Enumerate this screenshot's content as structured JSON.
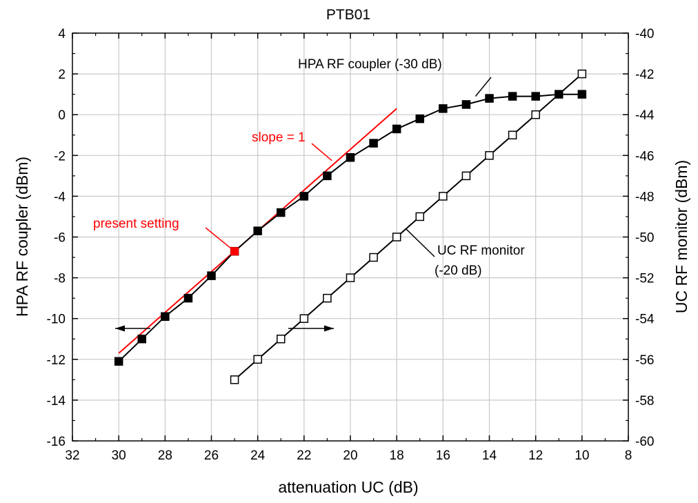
{
  "chart_data": {
    "type": "line",
    "title": "PTB01",
    "xlabel": "attenuation UC (dB)",
    "ylabel_left": "HPA RF coupler (dBm)",
    "ylabel_right": "UC RF monitor (dBm)",
    "x_reversed": true,
    "xlim": [
      32,
      8
    ],
    "ylim_left": [
      -16,
      4
    ],
    "ylim_right": [
      -60,
      -40
    ],
    "grid": true,
    "x_ticks": [
      "32",
      "30",
      "28",
      "26",
      "24",
      "22",
      "20",
      "18",
      "16",
      "14",
      "12",
      "10",
      "8"
    ],
    "y_left_ticks": [
      "4",
      "2",
      "0",
      "-2",
      "-4",
      "-6",
      "-8",
      "-10",
      "-12",
      "-14",
      "-16"
    ],
    "y_right_ticks": [
      "-40",
      "-42",
      "-44",
      "-46",
      "-48",
      "-50",
      "-52",
      "-54",
      "-56",
      "-58",
      "-60"
    ],
    "series": [
      {
        "name": "HPA RF coupler (-30 dB)",
        "axis": "left",
        "marker": "filled-square",
        "color": "#000000",
        "x": [
          30,
          29,
          28,
          27,
          26,
          25,
          24,
          23,
          22,
          21,
          20,
          19,
          18,
          17,
          16,
          15,
          14,
          13,
          12,
          11,
          10
        ],
        "y": [
          -12.1,
          -11.0,
          -9.9,
          -9.0,
          -7.9,
          -6.7,
          -5.7,
          -4.8,
          -4.0,
          -3.0,
          -2.1,
          -1.4,
          -0.7,
          -0.2,
          0.3,
          0.5,
          0.8,
          0.9,
          0.9,
          1.0,
          1.0
        ]
      },
      {
        "name": "UC RF monitor (-20 dB)",
        "axis": "right",
        "marker": "open-square",
        "color": "#000000",
        "x": [
          25,
          24,
          23,
          22,
          21,
          20,
          19,
          18,
          17,
          16,
          15,
          14,
          13,
          12,
          10
        ],
        "y": [
          -57,
          -56,
          -55,
          -54,
          -53,
          -52,
          -51,
          -50,
          -49,
          -48,
          -47,
          -46,
          -45,
          -44,
          -42
        ]
      }
    ],
    "reference_line": {
      "label": "slope = 1",
      "color": "#ff0000",
      "axis": "left",
      "x": [
        30,
        18
      ],
      "y": [
        -11.7,
        0.3
      ]
    },
    "highlight_point": {
      "label": "present setting",
      "color": "#ff0000",
      "axis": "left",
      "x": 25,
      "y": -6.7
    },
    "annotations": {
      "hpa_label": "HPA RF coupler (-30 dB)",
      "uc_label_line1": "UC RF monitor",
      "uc_label_line2": "(-20 dB)",
      "slope_label": "slope = 1",
      "present_label": "present setting"
    }
  }
}
